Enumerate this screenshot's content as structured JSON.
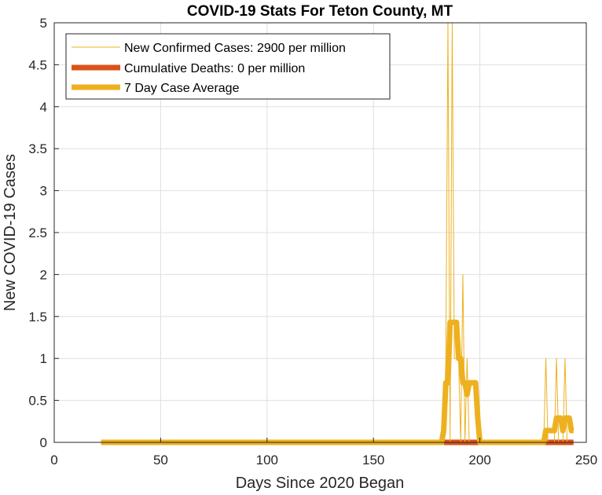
{
  "chart_data": {
    "type": "line",
    "title": "COVID-19 Stats For Teton County, MT",
    "xlabel": "Days Since 2020 Began",
    "ylabel": "New COVID-19 Cases",
    "xlim": [
      0,
      250
    ],
    "ylim": [
      0,
      5
    ],
    "xticks": [
      0,
      50,
      100,
      150,
      200,
      250
    ],
    "xtick_labels": [
      "0",
      "50",
      "100",
      "150",
      "200",
      "250"
    ],
    "yticks": [
      0,
      0.5,
      1,
      1.5,
      2,
      2.5,
      3,
      3.5,
      4,
      4.5,
      5
    ],
    "ytick_labels": [
      "0",
      "0.5",
      "1",
      "1.5",
      "2",
      "2.5",
      "3",
      "3.5",
      "4",
      "4.5",
      "5"
    ],
    "grid": true,
    "legend_position": "top-left",
    "series": [
      {
        "name": "New Confirmed Cases: 2900 per million",
        "color": "#EDB120",
        "style": "thin",
        "x": [
          22,
          183,
          184,
          185,
          186,
          187,
          188,
          189,
          190,
          191,
          192,
          193,
          194,
          195,
          196,
          197,
          198,
          199,
          200,
          230,
          231,
          232,
          233,
          234,
          235,
          236,
          237,
          238,
          239,
          240,
          241,
          242,
          243,
          244
        ],
        "y": [
          0,
          0,
          1,
          5,
          0,
          5,
          1,
          1,
          1,
          0,
          2,
          0,
          1,
          0,
          0,
          0,
          0,
          0,
          0,
          0,
          1,
          0,
          0,
          0,
          0,
          1,
          0,
          0,
          0,
          1,
          0,
          0,
          0,
          0
        ]
      },
      {
        "name": "Cumulative Deaths: 0 per million",
        "color": "#D95319",
        "style": "thick",
        "x": [
          183,
          244
        ],
        "y": [
          0,
          0
        ]
      },
      {
        "name": "7 Day Case Average",
        "color": "#EDB120",
        "style": "thick",
        "x": [
          22,
          182,
          183,
          184,
          185,
          186,
          187,
          188,
          189,
          190,
          191,
          192,
          193,
          194,
          195,
          196,
          197,
          198,
          199,
          200,
          201,
          230,
          231,
          232,
          233,
          234,
          235,
          236,
          237,
          238,
          239,
          240,
          241,
          242,
          243,
          244
        ],
        "y": [
          0,
          0,
          0.14,
          0.71,
          0.71,
          1.43,
          1.43,
          1.43,
          1.43,
          1.0,
          1.0,
          0.71,
          0.71,
          0.57,
          0.71,
          0.71,
          0.71,
          0.71,
          0.29,
          0.0,
          0,
          0,
          0.14,
          0.14,
          0.14,
          0.14,
          0.14,
          0.29,
          0.29,
          0.29,
          0.14,
          0.29,
          0.29,
          0.29,
          0.14,
          0.14
        ]
      }
    ]
  }
}
